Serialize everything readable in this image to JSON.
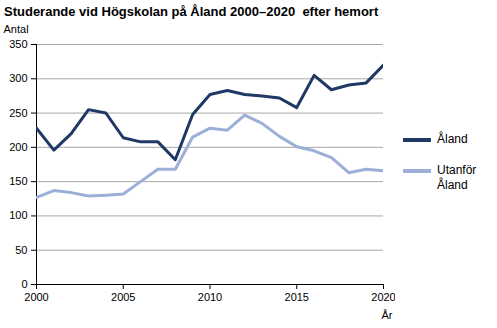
{
  "chart_data": {
    "type": "line",
    "title": "Studerande vid Högskolan på Åland 2000–2020  efter hemort",
    "y_label": "Antal",
    "x_label": "År",
    "x": [
      2000,
      2001,
      2002,
      2003,
      2004,
      2005,
      2006,
      2007,
      2008,
      2009,
      2010,
      2011,
      2012,
      2013,
      2014,
      2015,
      2016,
      2017,
      2018,
      2019,
      2020
    ],
    "series": [
      {
        "name": "Åland",
        "color": "#203864",
        "values": [
          228,
          196,
          220,
          255,
          250,
          214,
          208,
          208,
          182,
          248,
          277,
          283,
          277,
          275,
          272,
          258,
          305,
          284,
          291,
          294,
          320
        ]
      },
      {
        "name": "Utanför Åland",
        "color": "#9bafd8",
        "values": [
          127,
          137,
          134,
          129,
          130,
          132,
          150,
          168,
          168,
          215,
          228,
          225,
          247,
          235,
          216,
          201,
          195,
          185,
          163,
          168,
          166
        ]
      }
    ],
    "xlim": [
      2000,
      2020
    ],
    "xticks": [
      2000,
      2005,
      2010,
      2015,
      2020
    ],
    "ylim": [
      0,
      350
    ],
    "yticks": [
      0,
      50,
      100,
      150,
      200,
      250,
      300,
      350
    ],
    "grid": true,
    "legend": "right"
  }
}
